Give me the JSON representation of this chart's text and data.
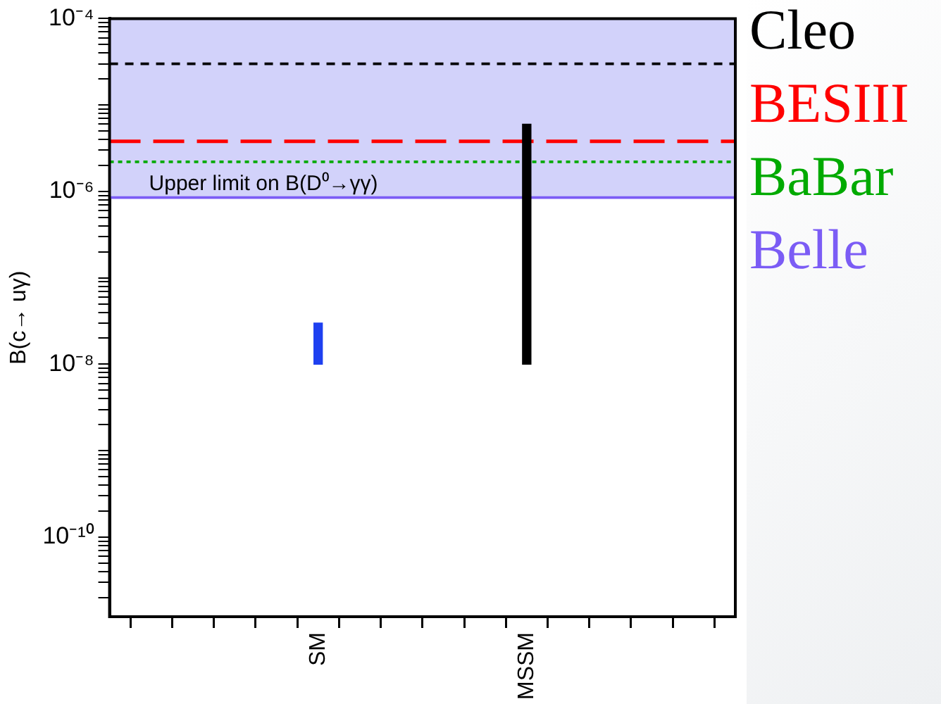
{
  "chart_data": {
    "type": "bar",
    "ylabel": "B(c→ uγ)",
    "categories": [
      null,
      null,
      null,
      null,
      null,
      "SM",
      null,
      null,
      null,
      null,
      "MSSM",
      null,
      null,
      null,
      null,
      null
    ],
    "values": [
      null,
      null,
      null,
      null,
      null,
      2e-08,
      null,
      null,
      null,
      null,
      6e-06,
      null,
      null,
      null,
      null,
      null
    ],
    "base": [
      null,
      null,
      null,
      null,
      null,
      1e-08,
      null,
      null,
      null,
      null,
      1e-08,
      null,
      null,
      null,
      null,
      null
    ],
    "colors": [
      "#000000",
      "#000000",
      "#000000",
      "#000000",
      "#000000",
      "#1e40f0",
      "#000000",
      "#000000",
      "#000000",
      "#000000",
      "#000000",
      "#000000",
      "#000000",
      "#000000",
      "#000000",
      "#000000"
    ],
    "log": true,
    "ylim": [
      1.2e-11,
      0.0001
    ],
    "yticks": [
      {
        "value": 2e-11,
        "label": null
      },
      {
        "value": 3e-11,
        "label": null
      },
      {
        "value": 4e-11,
        "label": null
      },
      {
        "value": 5e-11,
        "label": null
      },
      {
        "value": 6e-11,
        "label": null
      },
      {
        "value": 7e-11,
        "label": null
      },
      {
        "value": 8e-11,
        "label": null
      },
      {
        "value": 9e-11,
        "label": null
      },
      {
        "value": 1e-10,
        "label": "10⁻¹⁰"
      },
      {
        "value": 2e-10,
        "label": null
      },
      {
        "value": 3e-10,
        "label": null
      },
      {
        "value": 4e-10,
        "label": null
      },
      {
        "value": 5e-10,
        "label": null
      },
      {
        "value": 6e-10,
        "label": null
      },
      {
        "value": 7e-10,
        "label": null
      },
      {
        "value": 8e-10,
        "label": null
      },
      {
        "value": 9e-10,
        "label": null
      },
      {
        "value": 1e-09,
        "label": null
      },
      {
        "value": 2e-09,
        "label": null
      },
      {
        "value": 3e-09,
        "label": null
      },
      {
        "value": 4e-09,
        "label": null
      },
      {
        "value": 5e-09,
        "label": null
      },
      {
        "value": 6e-09,
        "label": null
      },
      {
        "value": 7e-09,
        "label": null
      },
      {
        "value": 8e-09,
        "label": null
      },
      {
        "value": 9e-09,
        "label": null
      },
      {
        "value": 1e-08,
        "label": "10⁻⁸"
      },
      {
        "value": 2e-08,
        "label": null
      },
      {
        "value": 3e-08,
        "label": null
      },
      {
        "value": 4e-08,
        "label": null
      },
      {
        "value": 5e-08,
        "label": null
      },
      {
        "value": 6e-08,
        "label": null
      },
      {
        "value": 7e-08,
        "label": null
      },
      {
        "value": 8e-08,
        "label": null
      },
      {
        "value": 9e-08,
        "label": null
      },
      {
        "value": 1e-07,
        "label": null
      },
      {
        "value": 2e-07,
        "label": null
      },
      {
        "value": 3e-07,
        "label": null
      },
      {
        "value": 4e-07,
        "label": null
      },
      {
        "value": 5e-07,
        "label": null
      },
      {
        "value": 6e-07,
        "label": null
      },
      {
        "value": 7e-07,
        "label": null
      },
      {
        "value": 8e-07,
        "label": null
      },
      {
        "value": 9e-07,
        "label": null
      },
      {
        "value": 1e-06,
        "label": "10⁻⁶"
      },
      {
        "value": 2e-06,
        "label": null
      },
      {
        "value": 3e-06,
        "label": null
      },
      {
        "value": 4e-06,
        "label": null
      },
      {
        "value": 5e-06,
        "label": null
      },
      {
        "value": 6e-06,
        "label": null
      },
      {
        "value": 7e-06,
        "label": null
      },
      {
        "value": 8e-06,
        "label": null
      },
      {
        "value": 9e-06,
        "label": null
      },
      {
        "value": 1e-05,
        "label": null
      },
      {
        "value": 2e-05,
        "label": null
      },
      {
        "value": 3e-05,
        "label": null
      },
      {
        "value": 4e-05,
        "label": null
      },
      {
        "value": 5e-05,
        "label": null
      },
      {
        "value": 6e-05,
        "label": null
      },
      {
        "value": 7e-05,
        "label": null
      },
      {
        "value": 8e-05,
        "label": null
      },
      {
        "value": 9e-05,
        "label": null
      },
      {
        "value": 0.0001,
        "label": "10⁻⁴"
      }
    ],
    "ref_lines": [
      {
        "axis": "y",
        "value": 3e-05,
        "label": "Cleo",
        "color": "#000000",
        "line_style": "dashed"
      },
      {
        "axis": "y",
        "value": 3.8e-06,
        "label": "BESIII",
        "color": "#ff0000",
        "line_style": "longdash"
      },
      {
        "axis": "y",
        "value": 2.2e-06,
        "label": "BaBar",
        "color": "#00aa00",
        "line_style": "dotted"
      },
      {
        "axis": "y",
        "value": 8.5e-07,
        "label": "Belle",
        "color": "#7b5cf5",
        "line_style": "solid"
      }
    ],
    "bands": [
      {
        "axis": "y",
        "from": 8.5e-07,
        "to": 0.0001,
        "label": "Upper limit on B(D⁰→γγ)",
        "color": "#d2d2fa"
      }
    ],
    "legend": "right",
    "grid": false
  }
}
